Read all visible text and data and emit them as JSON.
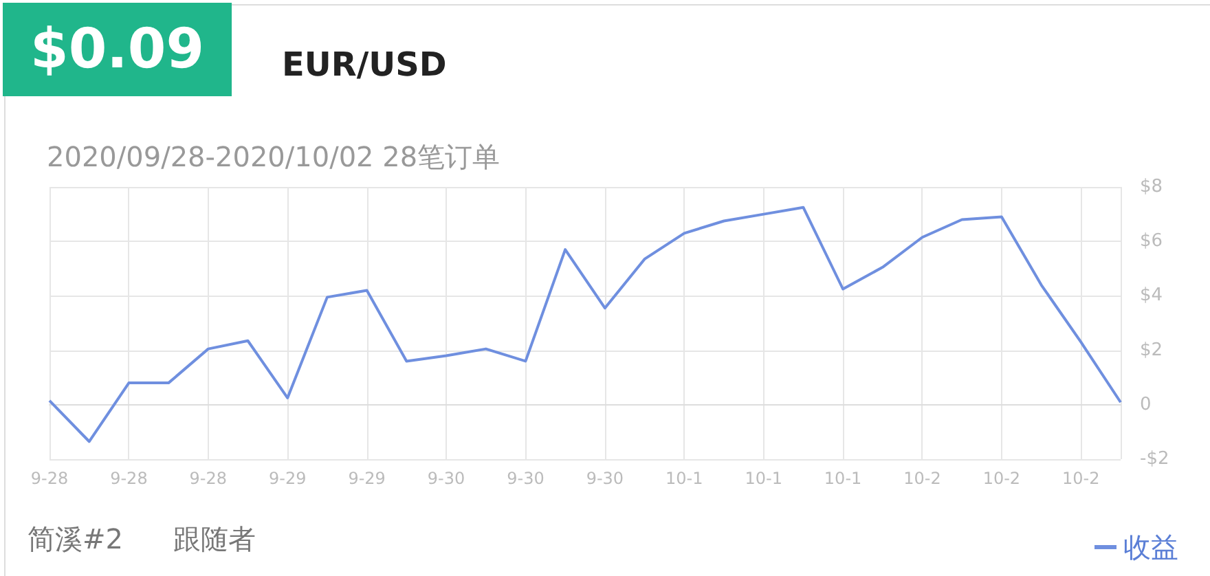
{
  "chart_data": {
    "type": "line",
    "title": "$0.09",
    "subtitle": "EUR/USD",
    "annotations": [
      "2020/09/28-2020/10/02 28笔订单",
      "简溪#2",
      "跟随者"
    ],
    "categories": [
      "9-28",
      null,
      "9-28",
      null,
      "9-28",
      null,
      "9-29",
      null,
      "9-29",
      null,
      "9-30",
      null,
      "9-30",
      null,
      "9-30",
      null,
      "10-1",
      null,
      "10-1",
      null,
      "10-1",
      null,
      "10-2",
      null,
      "10-2",
      null,
      "10-2",
      null
    ],
    "series": [
      {
        "name": "收益",
        "color": "#6f8fdf",
        "values": [
          0.15,
          -1.35,
          0.8,
          0.8,
          2.05,
          2.35,
          0.25,
          3.95,
          4.2,
          1.6,
          1.8,
          2.05,
          1.6,
          5.7,
          3.55,
          5.35,
          6.3,
          6.75,
          7.0,
          7.25,
          4.25,
          5.05,
          6.15,
          6.8,
          6.9,
          4.4,
          2.3,
          0.09
        ]
      }
    ],
    "ylim": [
      -2,
      8
    ],
    "yticks": [
      {
        "value": -2,
        "label": "-$2"
      },
      0,
      {
        "value": 2,
        "label": "$2"
      },
      {
        "value": 4,
        "label": "$4"
      },
      {
        "value": 6,
        "label": "$6"
      },
      {
        "value": 8,
        "label": "$8"
      }
    ],
    "grid": true,
    "legend": "bottom right",
    "marker": "none",
    "line_style": "solid"
  }
}
